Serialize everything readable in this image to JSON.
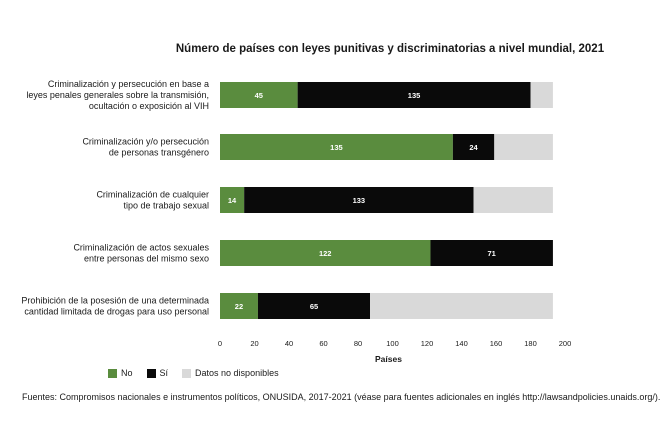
{
  "chart_data": {
    "type": "bar",
    "orientation": "horizontal",
    "stacked": true,
    "title": "Número de países con leyes punitivas y discriminatorias a nivel mundial, 2021",
    "xlabel": "Países",
    "xlim": [
      0,
      200
    ],
    "xticks": [
      "0",
      "20",
      "40",
      "60",
      "80",
      "100",
      "120",
      "140",
      "160",
      "180",
      "200"
    ],
    "categories": [
      [
        "Criminalización y persecución en base a",
        "leyes penales generales sobre la transmisión,",
        "ocultación o exposición al VIH"
      ],
      [
        "Criminalización y/o persecución",
        "de personas transgénero"
      ],
      [
        "Criminalización de cualquier",
        "tipo de trabajo sexual"
      ],
      [
        "Criminalización de actos sexuales",
        "entre personas del mismo sexo"
      ],
      [
        "Prohibición de la posesión de una determinada",
        "cantidad limitada de drogas para uso personal"
      ]
    ],
    "series": [
      {
        "name": "No",
        "color": "#5a8c3e",
        "values": [
          45,
          135,
          14,
          122,
          22
        ]
      },
      {
        "name": "Sí",
        "color": "#0a0a0a",
        "values": [
          135,
          24,
          133,
          71,
          65
        ]
      },
      {
        "name": "Datos no disponibles",
        "color": "#d9d9d9",
        "values": [
          13,
          34,
          46,
          0,
          106
        ]
      }
    ],
    "data_labels_shown": [
      [
        true,
        true
      ],
      [
        true,
        true
      ],
      [
        true,
        true
      ],
      [
        true,
        true
      ],
      [
        true,
        true
      ]
    ],
    "legend_position": "bottom-left",
    "grid": false
  },
  "source_note": "Fuentes: Compromisos nacionales e instrumentos políticos, ONUSIDA, 2017-2021 (véase para fuentes adicionales en inglés http://lawsandpolicies.unaids.org/)."
}
